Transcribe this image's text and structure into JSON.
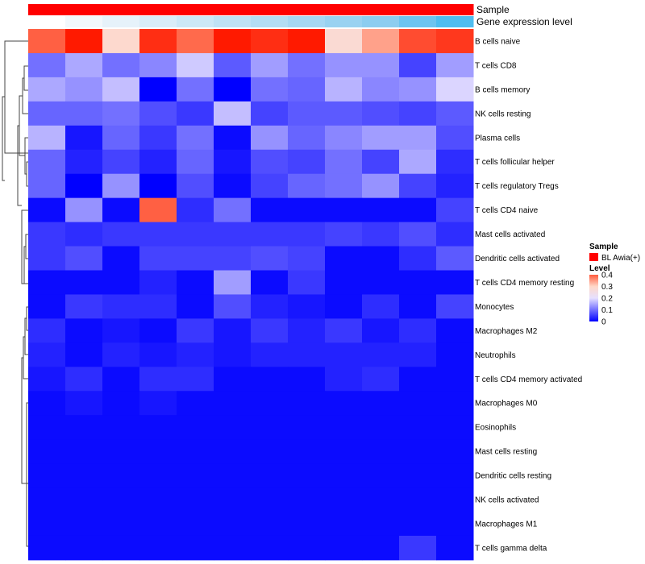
{
  "chart_data": {
    "type": "heatmap",
    "annotations": [
      {
        "label": "Sample",
        "colors": [
          "#ff0000",
          "#ff0000",
          "#ff0000",
          "#ff0000",
          "#ff0000",
          "#ff0000",
          "#ff0000",
          "#ff0000",
          "#ff0000",
          "#ff0000",
          "#ff0000",
          "#ff0000"
        ]
      },
      {
        "label": "Gene expression level",
        "colors": [
          "#ffffff",
          "#f2f8fc",
          "#e6f2fa",
          "#d9edf8",
          "#cce8f7",
          "#bfe2f5",
          "#b3ddf4",
          "#a6d7f3",
          "#99d2f1",
          "#8ccdf0",
          "#6dc4f0",
          "#4fbdf0"
        ]
      }
    ],
    "rows": [
      "B cells naive",
      "T cells CD8",
      "B cells memory",
      "NK cells resting",
      "Plasma cells",
      "T cells follicular helper",
      "T cells regulatory  Tregs",
      "T cells CD4 naive",
      "Mast cells activated",
      "Dendritic cells activated",
      "T cells CD4 memory resting",
      "Monocytes",
      "Macrophages M2",
      "Neutrophils",
      "T cells CD4 memory activated",
      "Macrophages M0",
      "Eosinophils",
      "Mast cells resting",
      "Dendritic cells resting",
      "NK cells activated",
      "Macrophages M1",
      "T cells gamma delta"
    ],
    "values": [
      [
        0.33,
        0.4,
        0.29,
        0.38,
        0.32,
        0.4,
        0.38,
        0.4,
        0.28,
        0.31,
        0.35,
        0.37
      ],
      [
        0.1,
        0.15,
        0.1,
        0.12,
        0.18,
        0.08,
        0.14,
        0.1,
        0.13,
        0.13,
        0.06,
        0.14
      ],
      [
        0.15,
        0.13,
        0.17,
        0.0,
        0.1,
        0.0,
        0.1,
        0.09,
        0.16,
        0.12,
        0.13,
        0.19
      ],
      [
        0.09,
        0.09,
        0.1,
        0.07,
        0.05,
        0.17,
        0.06,
        0.08,
        0.08,
        0.07,
        0.06,
        0.08
      ],
      [
        0.16,
        0.02,
        0.09,
        0.05,
        0.1,
        0.01,
        0.13,
        0.09,
        0.12,
        0.14,
        0.14,
        0.07
      ],
      [
        0.09,
        0.03,
        0.06,
        0.03,
        0.09,
        0.02,
        0.07,
        0.06,
        0.1,
        0.06,
        0.15,
        0.04
      ],
      [
        0.09,
        0.0,
        0.13,
        0.0,
        0.07,
        0.01,
        0.06,
        0.09,
        0.1,
        0.13,
        0.06,
        0.03
      ],
      [
        0.01,
        0.13,
        0.01,
        0.33,
        0.04,
        0.1,
        0.01,
        0.01,
        0.01,
        0.01,
        0.01,
        0.06
      ],
      [
        0.05,
        0.04,
        0.05,
        0.05,
        0.05,
        0.05,
        0.05,
        0.05,
        0.06,
        0.05,
        0.07,
        0.04
      ],
      [
        0.05,
        0.07,
        0.01,
        0.06,
        0.06,
        0.06,
        0.07,
        0.06,
        0.01,
        0.01,
        0.04,
        0.08
      ],
      [
        0.01,
        0.01,
        0.01,
        0.03,
        0.01,
        0.14,
        0.01,
        0.05,
        0.01,
        0.01,
        0.01,
        0.01
      ],
      [
        0.01,
        0.05,
        0.04,
        0.04,
        0.01,
        0.07,
        0.03,
        0.02,
        0.01,
        0.04,
        0.01,
        0.06
      ],
      [
        0.04,
        0.01,
        0.02,
        0.01,
        0.05,
        0.02,
        0.05,
        0.03,
        0.05,
        0.02,
        0.04,
        0.01
      ],
      [
        0.03,
        0.01,
        0.03,
        0.02,
        0.03,
        0.02,
        0.03,
        0.03,
        0.03,
        0.03,
        0.03,
        0.01
      ],
      [
        0.02,
        0.04,
        0.01,
        0.04,
        0.04,
        0.01,
        0.01,
        0.01,
        0.03,
        0.04,
        0.01,
        0.01
      ],
      [
        0.01,
        0.02,
        0.01,
        0.02,
        0.01,
        0.01,
        0.01,
        0.01,
        0.01,
        0.01,
        0.01,
        0.01
      ],
      [
        0.01,
        0.01,
        0.01,
        0.01,
        0.01,
        0.01,
        0.01,
        0.01,
        0.01,
        0.01,
        0.01,
        0.01
      ],
      [
        0.01,
        0.01,
        0.01,
        0.01,
        0.01,
        0.01,
        0.01,
        0.01,
        0.01,
        0.01,
        0.01,
        0.01
      ],
      [
        0.01,
        0.01,
        0.01,
        0.01,
        0.01,
        0.01,
        0.01,
        0.01,
        0.01,
        0.01,
        0.01,
        0.01
      ],
      [
        0.01,
        0.01,
        0.01,
        0.01,
        0.01,
        0.01,
        0.01,
        0.01,
        0.01,
        0.01,
        0.01,
        0.01
      ],
      [
        0.01,
        0.01,
        0.01,
        0.01,
        0.01,
        0.01,
        0.01,
        0.01,
        0.01,
        0.01,
        0.01,
        0.01
      ],
      [
        0.01,
        0.01,
        0.01,
        0.01,
        0.01,
        0.01,
        0.01,
        0.01,
        0.01,
        0.01,
        0.05,
        0.01
      ]
    ],
    "color_scale": {
      "domain": [
        0,
        0.2,
        0.4
      ],
      "colors": [
        "#0000ff",
        "#e6e0ff",
        "#ff1a00"
      ],
      "light_point": {
        "value": 0.3,
        "color": "#ffd8c8"
      }
    },
    "legend": {
      "sample_title": "Sample",
      "sample_entry_label": "BL Awia(+)",
      "sample_entry_color": "#ff0000",
      "level_title": "Level",
      "level_ticks": [
        {
          "value": 0.4,
          "label": "0.4"
        },
        {
          "value": 0.3,
          "label": "0.3"
        },
        {
          "value": 0.2,
          "label": "0.2"
        },
        {
          "value": 0.1,
          "label": "0.1"
        },
        {
          "value": 0.0,
          "label": "0"
        }
      ]
    }
  }
}
